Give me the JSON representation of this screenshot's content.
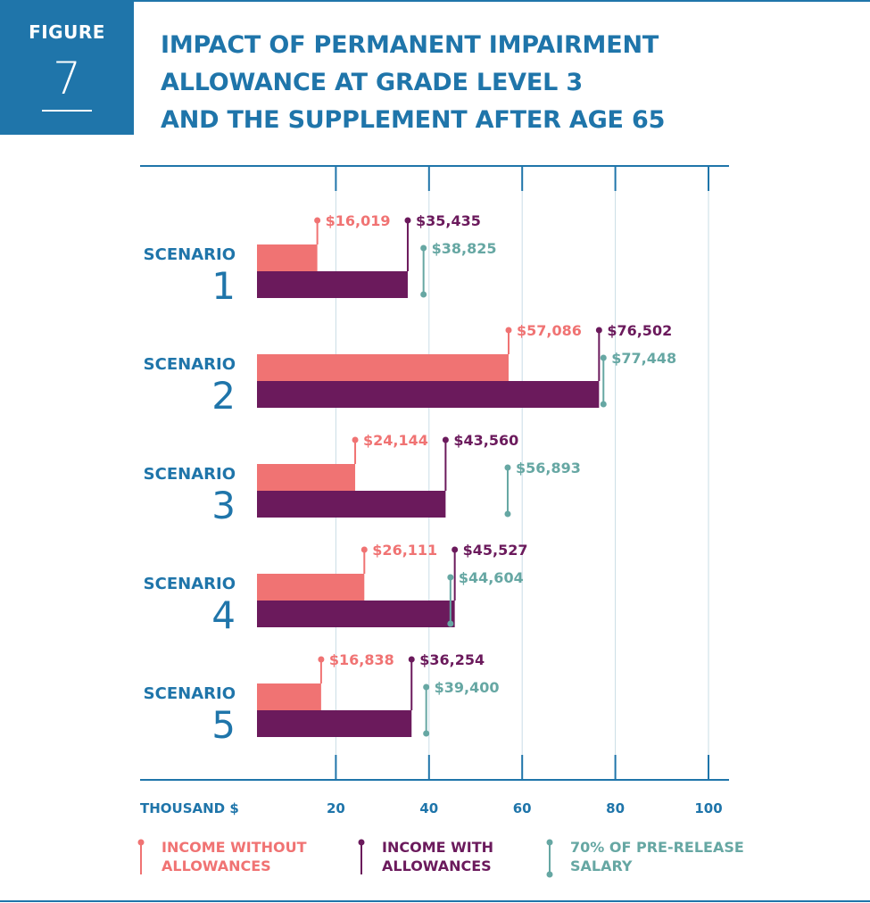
{
  "figure": {
    "word": "FIGURE",
    "number": "7"
  },
  "title": "IMPACT OF PERMANENT IMPAIRMENT\nALLOWANCE AT GRADE LEVEL 3\nAND THE SUPPLEMENT AFTER AGE 65",
  "colors": {
    "brand": "#1f75aa",
    "without": "#f07373",
    "with": "#6b1a5c",
    "salary": "#66a7a3",
    "grid": "#c9dde6"
  },
  "chart_data": {
    "type": "bar",
    "xlabel": "THOUSAND $",
    "xticks": [
      20,
      40,
      60,
      80,
      100
    ],
    "xlim": [
      0,
      100
    ],
    "grid": true,
    "legend_position": "bottom",
    "scenario_word": "SCENARIO",
    "categories": [
      "1",
      "2",
      "3",
      "4",
      "5"
    ],
    "series": [
      {
        "name": "INCOME WITHOUT\nALLOWANCES",
        "values": [
          16019,
          57086,
          24144,
          26111,
          16838
        ],
        "labels": [
          "$16,019",
          "$57,086",
          "$24,144",
          "$26,111",
          "$16,838"
        ]
      },
      {
        "name": "INCOME WITH\nALLOWANCES",
        "values": [
          35435,
          76502,
          43560,
          45527,
          36254
        ],
        "labels": [
          "$35,435",
          "$76,502",
          "$43,560",
          "$45,527",
          "$36,254"
        ]
      },
      {
        "name": "70% OF PRE-RELEASE\nSALARY",
        "values": [
          38825,
          77448,
          56893,
          44604,
          39400
        ],
        "labels": [
          "$38,825",
          "$77,448",
          "$56,893",
          "$44,604",
          "$39,400"
        ]
      }
    ]
  }
}
